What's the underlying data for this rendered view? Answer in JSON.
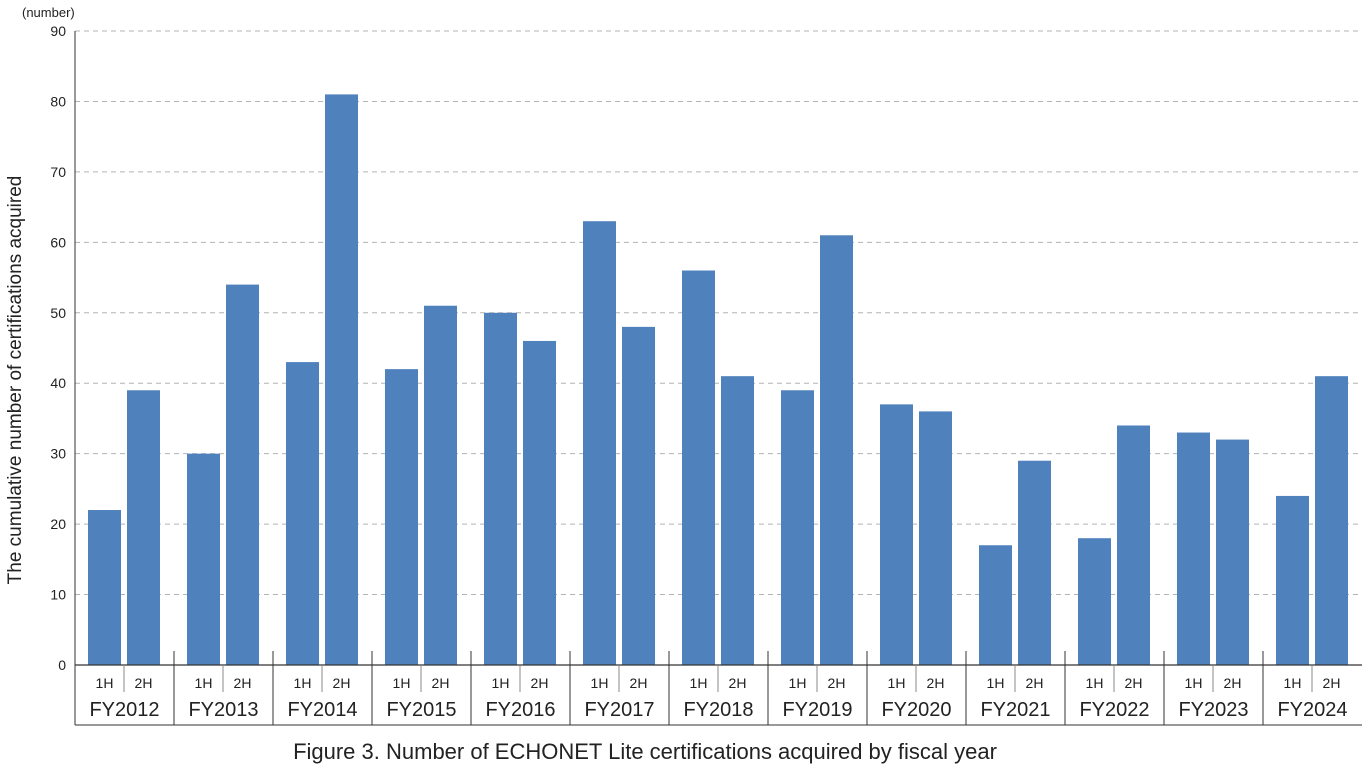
{
  "chart_data": {
    "type": "bar",
    "unit_label": "(number)",
    "ylabel": "The cumulative number of certifications acquired",
    "title": "Figure 3. Number of ECHONET Lite certifications acquired by fiscal year",
    "ylim": [
      0,
      90
    ],
    "yticks": [
      0,
      10,
      20,
      30,
      40,
      50,
      60,
      70,
      80,
      90
    ],
    "grid": true,
    "bar_color": "#4f81bd",
    "groups": [
      {
        "label": "FY2012",
        "halves": [
          "1H",
          "2H"
        ],
        "values": [
          22,
          39
        ]
      },
      {
        "label": "FY2013",
        "halves": [
          "1H",
          "2H"
        ],
        "values": [
          30,
          54
        ]
      },
      {
        "label": "FY2014",
        "halves": [
          "1H",
          "2H"
        ],
        "values": [
          43,
          81
        ]
      },
      {
        "label": "FY2015",
        "halves": [
          "1H",
          "2H"
        ],
        "values": [
          42,
          51
        ]
      },
      {
        "label": "FY2016",
        "halves": [
          "1H",
          "2H"
        ],
        "values": [
          50,
          46
        ]
      },
      {
        "label": "FY2017",
        "halves": [
          "1H",
          "2H"
        ],
        "values": [
          63,
          48
        ]
      },
      {
        "label": "FY2018",
        "halves": [
          "1H",
          "2H"
        ],
        "values": [
          56,
          41
        ]
      },
      {
        "label": "FY2019",
        "halves": [
          "1H",
          "2H"
        ],
        "values": [
          39,
          61
        ]
      },
      {
        "label": "FY2020",
        "halves": [
          "1H",
          "2H"
        ],
        "values": [
          37,
          36
        ]
      },
      {
        "label": "FY2021",
        "halves": [
          "1H",
          "2H"
        ],
        "values": [
          17,
          29
        ]
      },
      {
        "label": "FY2022",
        "halves": [
          "1H",
          "2H"
        ],
        "values": [
          18,
          34
        ]
      },
      {
        "label": "FY2023",
        "halves": [
          "1H",
          "2H"
        ],
        "values": [
          33,
          32
        ]
      },
      {
        "label": "FY2024",
        "halves": [
          "1H",
          "2H"
        ],
        "values": [
          24,
          41
        ]
      }
    ]
  }
}
